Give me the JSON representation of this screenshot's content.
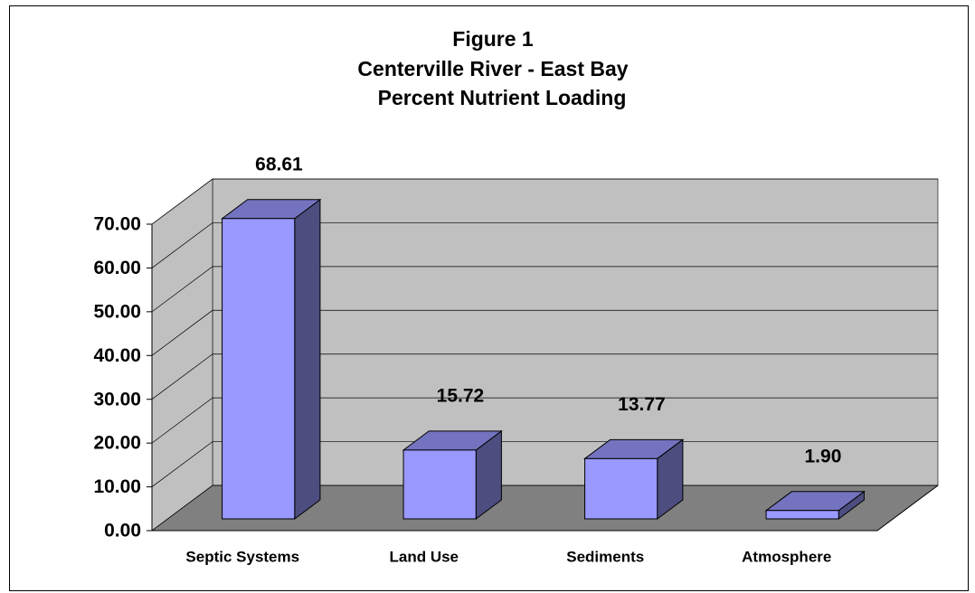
{
  "chart_data": {
    "type": "bar3d",
    "title": [
      "Figure 1",
      "Centerville River - East Bay",
      "Percent Nutrient Loading"
    ],
    "categories": [
      "Septic Systems",
      "Land Use",
      "Sediments",
      "Atmosphere"
    ],
    "values": [
      68.61,
      15.72,
      13.77,
      1.9
    ],
    "value_labels": [
      "68.61",
      "15.72",
      "13.77",
      "1.90"
    ],
    "color": "#9999ff",
    "ylim": [
      0,
      70
    ],
    "yticks": [
      {
        "value": 0,
        "label": "0.00"
      },
      {
        "value": 10,
        "label": "10.00"
      },
      {
        "value": 20,
        "label": "20.00"
      },
      {
        "value": 30,
        "label": "30.00"
      },
      {
        "value": 40,
        "label": "40.00"
      },
      {
        "value": 50,
        "label": "50.00"
      },
      {
        "value": 60,
        "label": "60.00"
      },
      {
        "value": 70,
        "label": "70.00"
      }
    ],
    "grid": true
  }
}
